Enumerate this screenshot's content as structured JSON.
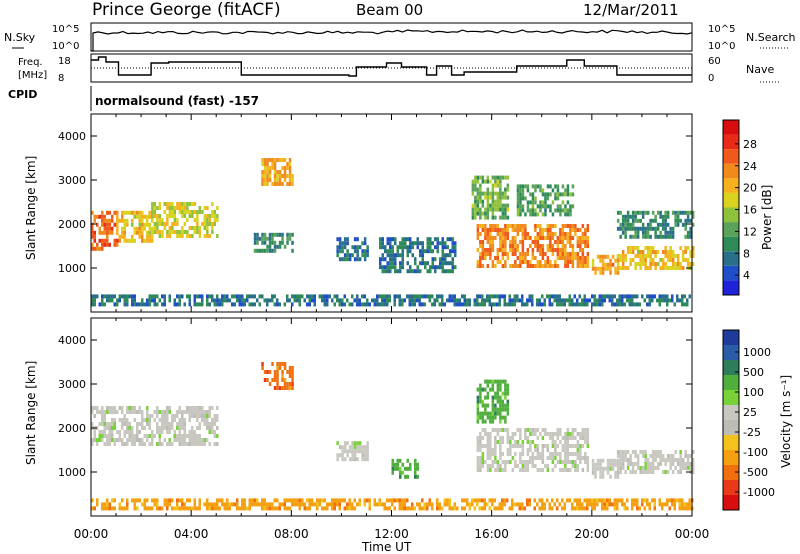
{
  "header": {
    "station": "Prince George (fitACF)",
    "beam": "Beam 00",
    "date": "12/Mar/2011"
  },
  "panels": {
    "noise": {
      "left_label": "N.Sky",
      "left_ticks": [
        "10^5",
        "10^0"
      ],
      "right_ticks": [
        "10^5",
        "10^0"
      ],
      "right_label": "N.Search"
    },
    "freq": {
      "left_label_1": "Freq.",
      "left_label_2": "[MHz]",
      "left_ticks": [
        "18",
        "8"
      ],
      "right_ticks": [
        "60",
        "0"
      ],
      "right_label": "Nave"
    },
    "cpid": {
      "label": "CPID",
      "value": "normalsound (fast) -157"
    }
  },
  "colors": {
    "power": [
      "#1e22d8",
      "#1f4fc8",
      "#2a6f8a",
      "#2e8b57",
      "#5aa15a",
      "#8fc23c",
      "#d9d320",
      "#f5b21e",
      "#f08a1c",
      "#ef5a1a",
      "#e82a18",
      "#d90d0d"
    ],
    "velocity": [
      "#1e3a9a",
      "#2a5da8",
      "#2e7d5a",
      "#4fae3c",
      "#7ad23a",
      "#c8c8c0",
      "#bdbdb5",
      "#f3c21c",
      "#f5a010",
      "#f07010",
      "#e83a18",
      "#d80e0e"
    ]
  },
  "chart_data": [
    {
      "type": "heatmap",
      "title": "Power",
      "xlabel": "",
      "ylabel": "Slant Range [km]",
      "y_ticks": [
        "1000",
        "2000",
        "3000",
        "4000"
      ],
      "ylim": [
        0,
        4500
      ],
      "x_ticks": [
        "00:00",
        "04:00",
        "08:00",
        "12:00",
        "16:00",
        "20:00",
        "00:00"
      ],
      "colorbar_label": "Power [dB]",
      "colorbar_ticks": [
        "4",
        "8",
        "12",
        "16",
        "20",
        "24",
        "28"
      ],
      "regions": [
        {
          "t": [
            0.0,
            1.0
          ],
          "r": [
            1400,
            2300
          ],
          "v": 24
        },
        {
          "t": [
            1.0,
            2.4
          ],
          "r": [
            1600,
            2300
          ],
          "v": 18
        },
        {
          "t": [
            2.4,
            5.0
          ],
          "r": [
            1700,
            2500
          ],
          "v": 16
        },
        {
          "t": [
            6.8,
            8.0
          ],
          "r": [
            2900,
            3500
          ],
          "v": 20
        },
        {
          "t": [
            6.5,
            8.0
          ],
          "r": [
            1400,
            1800
          ],
          "v": 8
        },
        {
          "t": [
            9.8,
            11.0
          ],
          "r": [
            1200,
            1700
          ],
          "v": 6
        },
        {
          "t": [
            11.5,
            14.5
          ],
          "r": [
            900,
            1700
          ],
          "v": 6
        },
        {
          "t": [
            15.4,
            19.8
          ],
          "r": [
            1000,
            2000
          ],
          "v": 22
        },
        {
          "t": [
            15.2,
            16.6
          ],
          "r": [
            2100,
            3100
          ],
          "v": 12
        },
        {
          "t": [
            17.0,
            19.2
          ],
          "r": [
            2200,
            2900
          ],
          "v": 10
        },
        {
          "t": [
            20.0,
            21.0
          ],
          "r": [
            900,
            1300
          ],
          "v": 20
        },
        {
          "t": [
            21.0,
            24.0
          ],
          "r": [
            1000,
            1500
          ],
          "v": 18
        },
        {
          "t": [
            21.0,
            24.0
          ],
          "r": [
            1700,
            2300
          ],
          "v": 8
        },
        {
          "t": [
            0.0,
            24.0
          ],
          "r": [
            200,
            400
          ],
          "v": 6
        }
      ]
    },
    {
      "type": "heatmap",
      "title": "Velocity",
      "xlabel": "Time UT",
      "ylabel": "Slant Range [km]",
      "y_ticks": [
        "1000",
        "2000",
        "3000",
        "4000"
      ],
      "ylim": [
        0,
        4500
      ],
      "x_ticks": [
        "00:00",
        "04:00",
        "08:00",
        "12:00",
        "16:00",
        "20:00",
        "00:00"
      ],
      "colorbar_label": "Velocity [m s⁻¹]",
      "colorbar_ticks": [
        "1000",
        "500",
        "100",
        "25",
        "-25",
        "-100",
        "-500",
        "-1000"
      ],
      "regions": [
        {
          "t": [
            0.0,
            5.0
          ],
          "r": [
            1600,
            2500
          ],
          "v": 0
        },
        {
          "t": [
            6.8,
            8.0
          ],
          "r": [
            2900,
            3500
          ],
          "v": -300
        },
        {
          "t": [
            9.8,
            11.0
          ],
          "r": [
            1300,
            1700
          ],
          "v": 0
        },
        {
          "t": [
            12.0,
            13.0
          ],
          "r": [
            900,
            1300
          ],
          "v": 150
        },
        {
          "t": [
            15.4,
            19.8
          ],
          "r": [
            1000,
            2000
          ],
          "v": 0
        },
        {
          "t": [
            15.4,
            16.6
          ],
          "r": [
            2100,
            3100
          ],
          "v": 80
        },
        {
          "t": [
            20.0,
            21.0
          ],
          "r": [
            900,
            1300
          ],
          "v": 0
        },
        {
          "t": [
            21.0,
            24.0
          ],
          "r": [
            1000,
            1500
          ],
          "v": 0
        },
        {
          "t": [
            0.0,
            24.0
          ],
          "r": [
            200,
            400
          ],
          "v": -50
        }
      ]
    }
  ]
}
